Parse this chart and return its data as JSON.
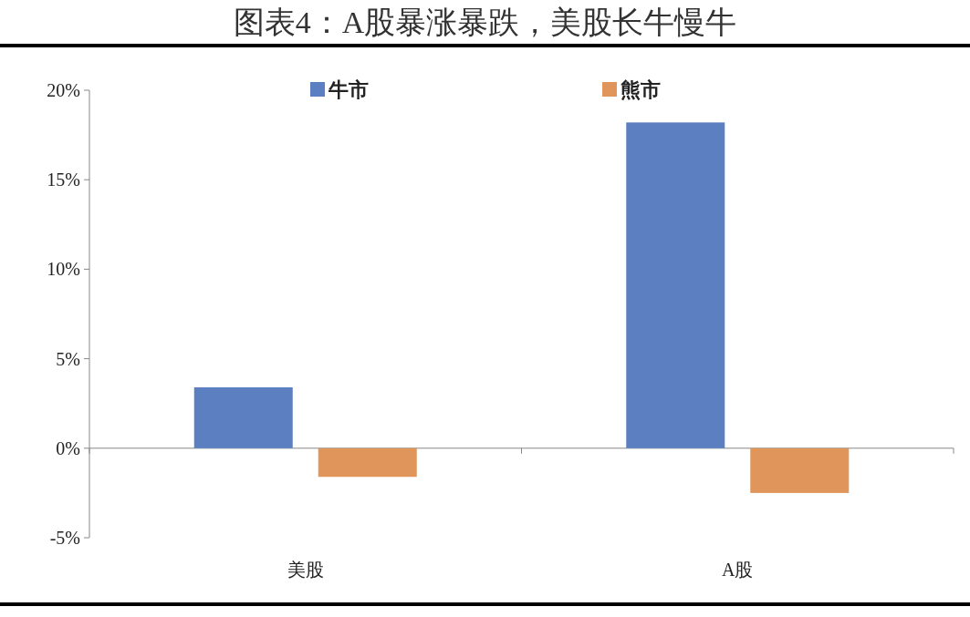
{
  "chart_data": {
    "type": "bar",
    "title": "图表4：A股暴涨暴跌，美股长牛慢牛",
    "categories": [
      "美股",
      "A股"
    ],
    "series": [
      {
        "name": "牛市",
        "color": "#5b7fc0",
        "values": [
          3.4,
          18.2
        ]
      },
      {
        "name": "熊市",
        "color": "#e0955a",
        "values": [
          -1.6,
          -2.5
        ]
      }
    ],
    "ylim": [
      -5,
      20
    ],
    "yticks": [
      {
        "value": -5,
        "label": "-5%"
      },
      {
        "value": 0,
        "label": "0%"
      },
      {
        "value": 5,
        "label": "5%"
      },
      {
        "value": 10,
        "label": "10%"
      },
      {
        "value": 15,
        "label": "15%"
      },
      {
        "value": 20,
        "label": "20%"
      }
    ],
    "legend": "top"
  }
}
